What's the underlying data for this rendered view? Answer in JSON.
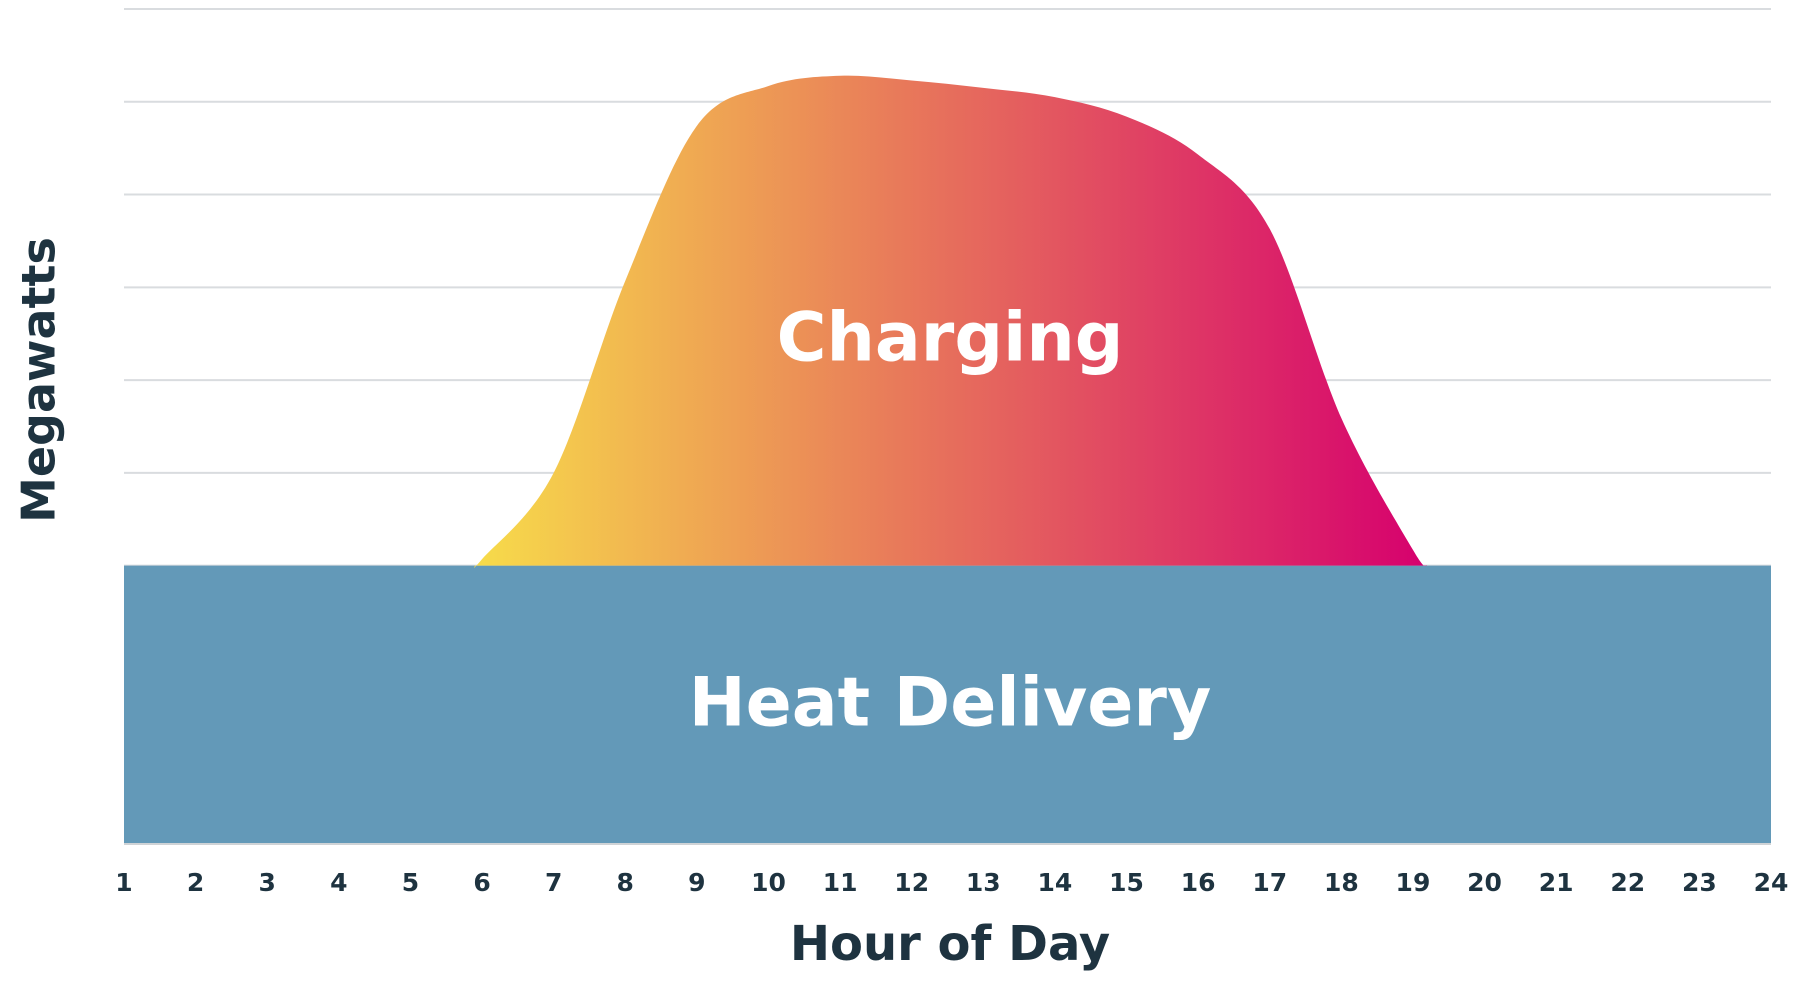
{
  "chart_data": {
    "type": "stacked_area",
    "xlabel": "Hour of Day",
    "ylabel": "Megawatts",
    "xlim": [
      1,
      24
    ],
    "xticks": [
      1,
      2,
      3,
      4,
      5,
      6,
      7,
      8,
      9,
      10,
      11,
      12,
      13,
      14,
      15,
      16,
      17,
      18,
      19,
      20,
      21,
      22,
      23,
      24
    ],
    "ylim": [
      0,
      9
    ],
    "yticks": [
      0,
      1,
      2,
      3,
      4,
      5,
      6,
      7,
      8,
      9
    ],
    "grid": true,
    "series": [
      {
        "name": "Heat Delivery",
        "color": "#6399b8",
        "x": [
          1,
          24
        ],
        "values": [
          3,
          3
        ]
      },
      {
        "name": "Charging",
        "color": [
          "#f7dc4a",
          "#d6006e"
        ],
        "x": [
          5.9,
          6,
          7,
          8,
          9,
          10,
          11,
          12,
          13,
          14,
          15,
          16,
          17,
          18,
          19,
          19.2
        ],
        "values": [
          0,
          0.07,
          1.0,
          3.07,
          4.74,
          5.17,
          5.28,
          5.23,
          5.15,
          5.05,
          4.84,
          4.43,
          3.63,
          1.59,
          0.17,
          0
        ]
      }
    ]
  }
}
